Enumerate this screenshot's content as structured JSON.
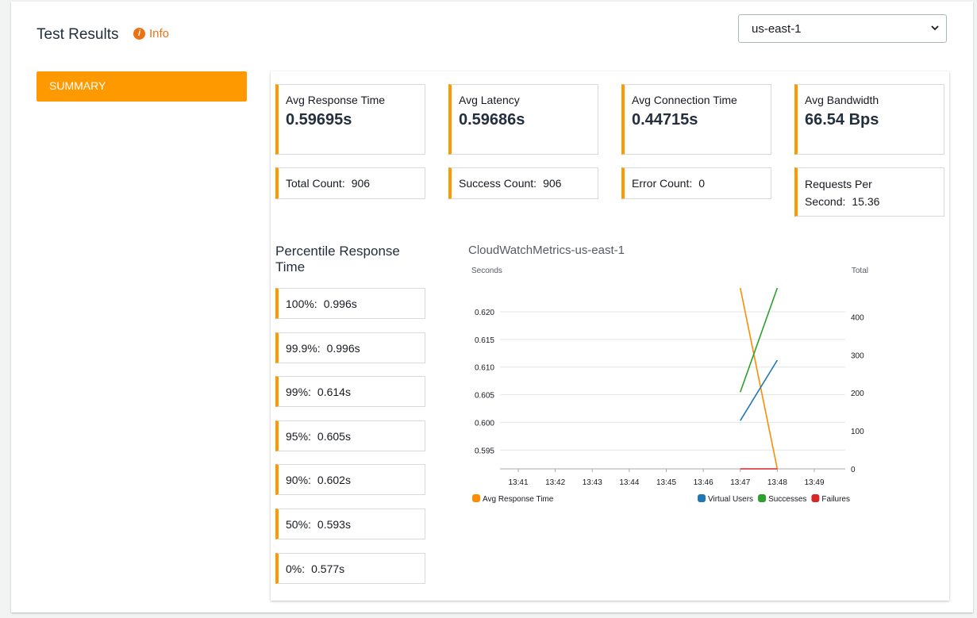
{
  "header": {
    "title": "Test Results",
    "info": "Info",
    "region": "us-east-1"
  },
  "nav": {
    "items": [
      "SUMMARY"
    ]
  },
  "metrics": [
    {
      "label": "Avg Response Time",
      "value": "0.59695s"
    },
    {
      "label": "Avg Latency",
      "value": "0.59686s"
    },
    {
      "label": "Avg Connection Time",
      "value": "0.44715s"
    },
    {
      "label": "Avg Bandwidth",
      "value": "66.54 Bps"
    }
  ],
  "counts": [
    {
      "label": "Total Count:",
      "value": "906"
    },
    {
      "label": "Success Count:",
      "value": "906"
    },
    {
      "label": "Error Count:",
      "value": "0"
    },
    {
      "label": "Requests Per Second:",
      "value": "15.36"
    }
  ],
  "percentiles": {
    "title": "Percentile Response Time",
    "items": [
      {
        "label": "100%:",
        "value": "0.996s"
      },
      {
        "label": "99.9%:",
        "value": "0.996s"
      },
      {
        "label": "99%:",
        "value": "0.614s"
      },
      {
        "label": "95%:",
        "value": "0.605s"
      },
      {
        "label": "90%:",
        "value": "0.602s"
      },
      {
        "label": "50%:",
        "value": "0.593s"
      },
      {
        "label": "0%:",
        "value": "0.577s"
      }
    ]
  },
  "chart_data": {
    "type": "line",
    "title": "CloudWatchMetrics-us-east-1",
    "y_label": "Seconds",
    "y2_label": "Total",
    "categories": [
      "13:41",
      "13:42",
      "13:43",
      "13:44",
      "13:45",
      "13:46",
      "13:47",
      "13:48",
      "13:49"
    ],
    "ylim": [
      0.5916,
      0.6243
    ],
    "yticks": [
      0.595,
      {
        "value": 0.6,
        "label": "0.600"
      },
      0.605,
      {
        "value": 0.61,
        "label": "0.610"
      },
      0.615,
      {
        "value": 0.62,
        "label": "0.620"
      }
    ],
    "y2lim": [
      0,
      476
    ],
    "y2ticks": [
      0,
      100,
      200,
      300,
      400
    ],
    "grid": true,
    "series": [
      {
        "name": "Avg Response Time",
        "color": "#ff8c00",
        "values": [
          null,
          null,
          null,
          null,
          null,
          null,
          0.6243,
          0.5916,
          null
        ]
      },
      {
        "name": "Virtual Users",
        "color": "#1f77b4",
        "axis": "y2",
        "values": [
          null,
          null,
          null,
          null,
          null,
          null,
          127,
          286,
          null
        ]
      },
      {
        "name": "Successes",
        "color": "#2ca02c",
        "axis": "y2",
        "values": [
          null,
          null,
          null,
          null,
          null,
          null,
          202,
          476,
          null
        ]
      },
      {
        "name": "Failures",
        "color": "#d62728",
        "axis": "y2",
        "values": [
          null,
          null,
          null,
          null,
          null,
          null,
          0,
          0,
          null
        ]
      }
    ]
  }
}
